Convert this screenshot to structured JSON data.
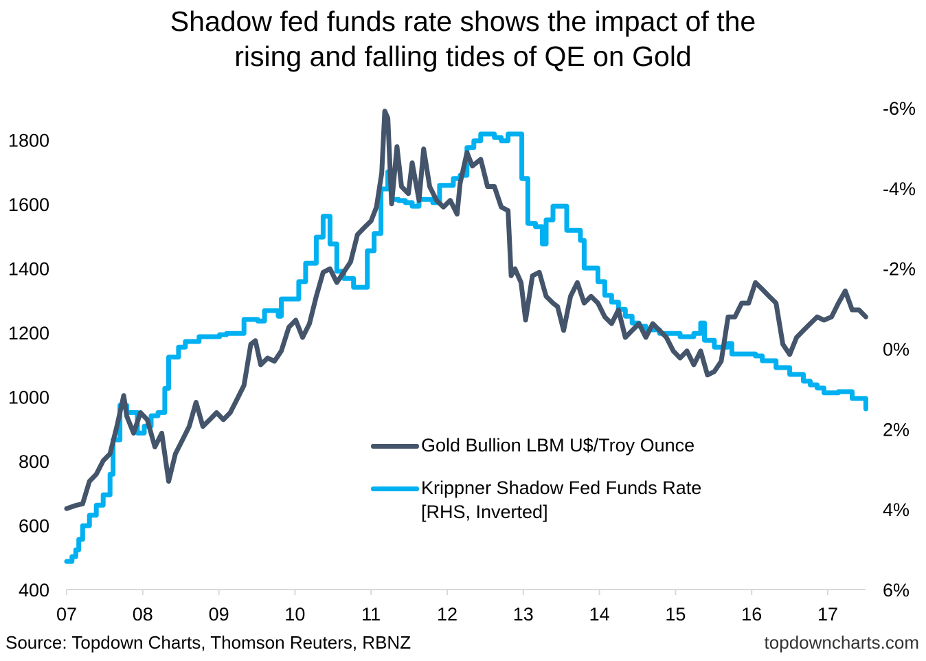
{
  "title_lines": [
    "Shadow fed funds rate shows the impact of the",
    "rising and falling tides of QE on Gold"
  ],
  "source": "Source: Topdown Charts, Thomson Reuters, RBNZ",
  "brand": "topdowncharts.com",
  "chart_data": {
    "type": "line",
    "title": "Shadow fed funds rate shows the impact of the rising and falling tides of QE on Gold",
    "x_ticks": [
      {
        "v": 2007,
        "label": "07"
      },
      {
        "v": 2008,
        "label": "08"
      },
      {
        "v": 2009,
        "label": "09"
      },
      {
        "v": 2010,
        "label": "10"
      },
      {
        "v": 2011,
        "label": "11"
      },
      {
        "v": 2012,
        "label": "12"
      },
      {
        "v": 2013,
        "label": "13"
      },
      {
        "v": 2014,
        "label": "14"
      },
      {
        "v": 2015,
        "label": "15"
      },
      {
        "v": 2016,
        "label": "16"
      },
      {
        "v": 2017,
        "label": "17"
      }
    ],
    "xlim": [
      2007,
      2017.5
    ],
    "left_axis": {
      "ylim": [
        400,
        1900
      ],
      "ticks": [
        400,
        600,
        800,
        1000,
        1200,
        1400,
        1600,
        1800
      ]
    },
    "right_axis": {
      "ylim": [
        6,
        -6
      ],
      "inverted": true,
      "ticks": [
        {
          "v": -6,
          "label": "-6%"
        },
        {
          "v": -4,
          "label": "-4%"
        },
        {
          "v": -2,
          "label": "-2%"
        },
        {
          "v": 0,
          "label": "0%"
        },
        {
          "v": 2,
          "label": "2%"
        },
        {
          "v": 4,
          "label": "4%"
        },
        {
          "v": 6,
          "label": "6%"
        }
      ]
    },
    "grid": false,
    "legend_placement": "bottom-center",
    "series": [
      {
        "name": "Gold Bullion LBM U$/Troy Ounce",
        "axis": "left",
        "color": "#44546a",
        "x": [
          2007.0,
          2007.12,
          2007.21,
          2007.3,
          2007.39,
          2007.48,
          2007.57,
          2007.66,
          2007.75,
          2007.79,
          2007.88,
          2007.97,
          2008.06,
          2008.16,
          2008.25,
          2008.34,
          2008.43,
          2008.52,
          2008.61,
          2008.7,
          2008.79,
          2008.88,
          2008.97,
          2009.06,
          2009.15,
          2009.24,
          2009.33,
          2009.42,
          2009.48,
          2009.55,
          2009.64,
          2009.73,
          2009.82,
          2009.92,
          2010.01,
          2010.1,
          2010.19,
          2010.28,
          2010.37,
          2010.46,
          2010.55,
          2010.64,
          2010.73,
          2010.82,
          2010.91,
          2011.0,
          2011.07,
          2011.14,
          2011.18,
          2011.22,
          2011.27,
          2011.34,
          2011.4,
          2011.49,
          2011.54,
          2011.63,
          2011.69,
          2011.77,
          2011.86,
          2011.95,
          2012.04,
          2012.13,
          2012.17,
          2012.26,
          2012.33,
          2012.44,
          2012.53,
          2012.62,
          2012.71,
          2012.8,
          2012.84,
          2012.89,
          2012.97,
          2013.03,
          2013.12,
          2013.21,
          2013.3,
          2013.39,
          2013.45,
          2013.53,
          2013.62,
          2013.71,
          2013.8,
          2013.89,
          2013.98,
          2014.07,
          2014.16,
          2014.25,
          2014.34,
          2014.43,
          2014.52,
          2014.61,
          2014.7,
          2014.79,
          2014.88,
          2014.97,
          2015.06,
          2015.15,
          2015.24,
          2015.33,
          2015.42,
          2015.51,
          2015.6,
          2015.69,
          2015.78,
          2015.87,
          2015.96,
          2016.05,
          2016.14,
          2016.23,
          2016.32,
          2016.41,
          2016.5,
          2016.59,
          2016.68,
          2016.77,
          2016.86,
          2016.95,
          2017.05,
          2017.14,
          2017.23,
          2017.32,
          2017.41,
          2017.5
        ],
        "values": [
          652,
          662,
          667,
          737,
          759,
          801,
          823,
          908,
          1004,
          940,
          887,
          951,
          929,
          844,
          887,
          737,
          823,
          865,
          908,
          983,
          908,
          929,
          951,
          929,
          951,
          993,
          1036,
          1164,
          1175,
          1100,
          1121,
          1111,
          1143,
          1217,
          1239,
          1185,
          1228,
          1313,
          1388,
          1399,
          1356,
          1388,
          1420,
          1505,
          1527,
          1548,
          1591,
          1697,
          1890,
          1868,
          1601,
          1779,
          1655,
          1633,
          1729,
          1612,
          1772,
          1655,
          1612,
          1591,
          1612,
          1569,
          1665,
          1761,
          1719,
          1740,
          1655,
          1655,
          1591,
          1580,
          1377,
          1399,
          1356,
          1239,
          1377,
          1388,
          1313,
          1292,
          1281,
          1207,
          1313,
          1356,
          1292,
          1313,
          1292,
          1249,
          1228,
          1271,
          1185,
          1207,
          1228,
          1185,
          1228,
          1207,
          1185,
          1143,
          1121,
          1143,
          1100,
          1143,
          1068,
          1079,
          1111,
          1249,
          1249,
          1292,
          1292,
          1356,
          1335,
          1313,
          1292,
          1164,
          1132,
          1185,
          1207,
          1228,
          1249,
          1239,
          1249,
          1292,
          1330,
          1271,
          1271,
          1249
        ]
      },
      {
        "name": "Krippner Shadow Fed Funds Rate [RHS, Inverted]",
        "axis": "right",
        "color": "#00b0f0",
        "step": true,
        "x": [
          2007.0,
          2007.07,
          2007.12,
          2007.16,
          2007.21,
          2007.3,
          2007.39,
          2007.48,
          2007.57,
          2007.61,
          2007.7,
          2007.79,
          2007.93,
          2008.02,
          2008.11,
          2008.2,
          2008.29,
          2008.34,
          2008.38,
          2008.47,
          2008.56,
          2008.74,
          2008.92,
          2009.01,
          2009.1,
          2009.24,
          2009.33,
          2009.51,
          2009.6,
          2009.78,
          2009.82,
          2009.96,
          2010.05,
          2010.14,
          2010.28,
          2010.37,
          2010.44,
          2010.46,
          2010.55,
          2010.64,
          2010.77,
          2010.86,
          2010.95,
          2011.04,
          2011.13,
          2011.22,
          2011.27,
          2011.36,
          2011.45,
          2011.54,
          2011.63,
          2011.72,
          2011.81,
          2011.9,
          2011.99,
          2012.08,
          2012.17,
          2012.26,
          2012.35,
          2012.44,
          2012.53,
          2012.62,
          2012.71,
          2012.8,
          2012.89,
          2012.98,
          2013.06,
          2013.16,
          2013.25,
          2013.3,
          2013.39,
          2013.48,
          2013.57,
          2013.66,
          2013.75,
          2013.8,
          2013.89,
          2013.98,
          2014.07,
          2014.16,
          2014.25,
          2014.34,
          2014.43,
          2014.52,
          2014.61,
          2014.79,
          2014.97,
          2015.06,
          2015.15,
          2015.24,
          2015.33,
          2015.38,
          2015.51,
          2015.69,
          2015.74,
          2015.87,
          2016.05,
          2016.14,
          2016.32,
          2016.5,
          2016.68,
          2016.77,
          2016.86,
          2016.95,
          2017.14,
          2017.32,
          2017.5
        ],
        "values": [
          5.3,
          5.18,
          5.01,
          4.75,
          4.41,
          4.15,
          3.9,
          3.64,
          3.13,
          2.27,
          1.41,
          1.59,
          2.1,
          1.93,
          1.67,
          1.59,
          0.99,
          0.21,
          0.21,
          -0.04,
          -0.18,
          -0.3,
          -0.3,
          -0.35,
          -0.38,
          -0.38,
          -0.73,
          -0.69,
          -0.95,
          -0.81,
          -1.24,
          -1.24,
          -1.67,
          -2.13,
          -2.78,
          -3.3,
          -3.3,
          -2.61,
          -1.93,
          -1.75,
          -1.53,
          -1.53,
          -2.44,
          -2.87,
          -3.98,
          -4.41,
          -3.72,
          -3.69,
          -3.64,
          -3.55,
          -3.72,
          -3.72,
          -3.64,
          -4.07,
          -4.07,
          -4.24,
          -4.32,
          -5.01,
          -5.18,
          -5.35,
          -5.35,
          -5.26,
          -5.18,
          -5.35,
          -5.35,
          -4.24,
          -3.12,
          -3.04,
          -2.61,
          -3.21,
          -3.55,
          -3.55,
          -2.95,
          -2.95,
          -2.7,
          -2.01,
          -2.01,
          -1.67,
          -1.33,
          -1.16,
          -0.98,
          -0.81,
          -0.64,
          -0.56,
          -0.47,
          -0.38,
          -0.38,
          -0.3,
          -0.3,
          -0.38,
          -0.64,
          -0.21,
          -0.04,
          -0.13,
          0.13,
          0.13,
          0.18,
          0.3,
          0.47,
          0.64,
          0.81,
          0.9,
          0.98,
          1.1,
          1.07,
          1.24,
          1.5
        ]
      }
    ]
  },
  "legend": {
    "gold_label": "Gold Bullion LBM U$/Troy Ounce",
    "shadow_label_line1": "Krippner Shadow Fed Funds Rate",
    "shadow_label_line2": "[RHS, Inverted]"
  }
}
